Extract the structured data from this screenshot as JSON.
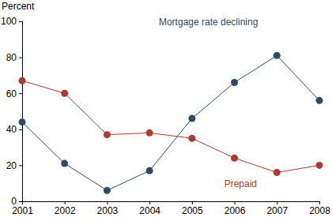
{
  "chart_data": {
    "type": "line",
    "y_label": "Percent",
    "x": [
      2001,
      2002,
      2003,
      2004,
      2005,
      2006,
      2007,
      2008
    ],
    "xlim": [
      2001,
      2008
    ],
    "xticks": [
      2001,
      2002,
      2003,
      2004,
      2005,
      2006,
      2007,
      2008
    ],
    "ylim": [
      0,
      100
    ],
    "yticks": [
      0,
      20,
      40,
      60,
      80,
      100
    ],
    "grid": false,
    "series": [
      {
        "name": "Mortgage rate declining",
        "color": "#2b4c66",
        "marker": "circle",
        "line_style": "solid",
        "values": [
          44,
          21,
          6,
          17,
          46,
          66,
          81,
          56
        ]
      },
      {
        "name": "Prepaid",
        "color": "#b03a2e",
        "marker": "circle",
        "line_style": "solid",
        "values": [
          67,
          60,
          37,
          38,
          35,
          24,
          16,
          20
        ]
      }
    ]
  }
}
